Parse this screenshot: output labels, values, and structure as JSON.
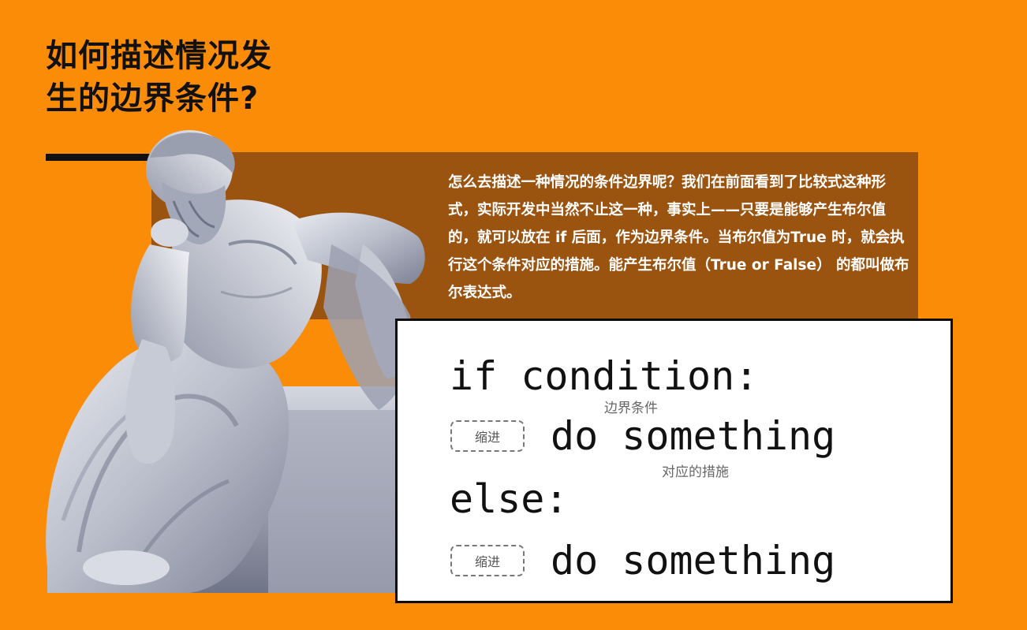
{
  "title": {
    "line1": "如何描述情况发",
    "line2": "生的边界条件?"
  },
  "description": "怎么去描述一种情况的条件边界呢？我们在前面看到了比较式这种形式，实际开发中当然不止这一种，事实上——只要是能够产生布尔值的，就可以放在 if 后面，作为边界条件。当布尔值为True 时，就会执行这个条件对应的措施。能产生布尔值（True or False） 的都叫做布尔表达式。",
  "code": {
    "line1": "if condition:",
    "line2": "do something",
    "line3": "else:",
    "line4": "do something"
  },
  "annotations": {
    "condition": "边界条件",
    "action": "对应的措施",
    "indent1": "缩进",
    "indent2": "缩进"
  },
  "colors": {
    "background": "#fb8c08",
    "panel": "#9b5310",
    "text_dark": "#111111",
    "text_light": "#ffffff"
  },
  "icons": {
    "statue": "thinker-statue-image"
  }
}
